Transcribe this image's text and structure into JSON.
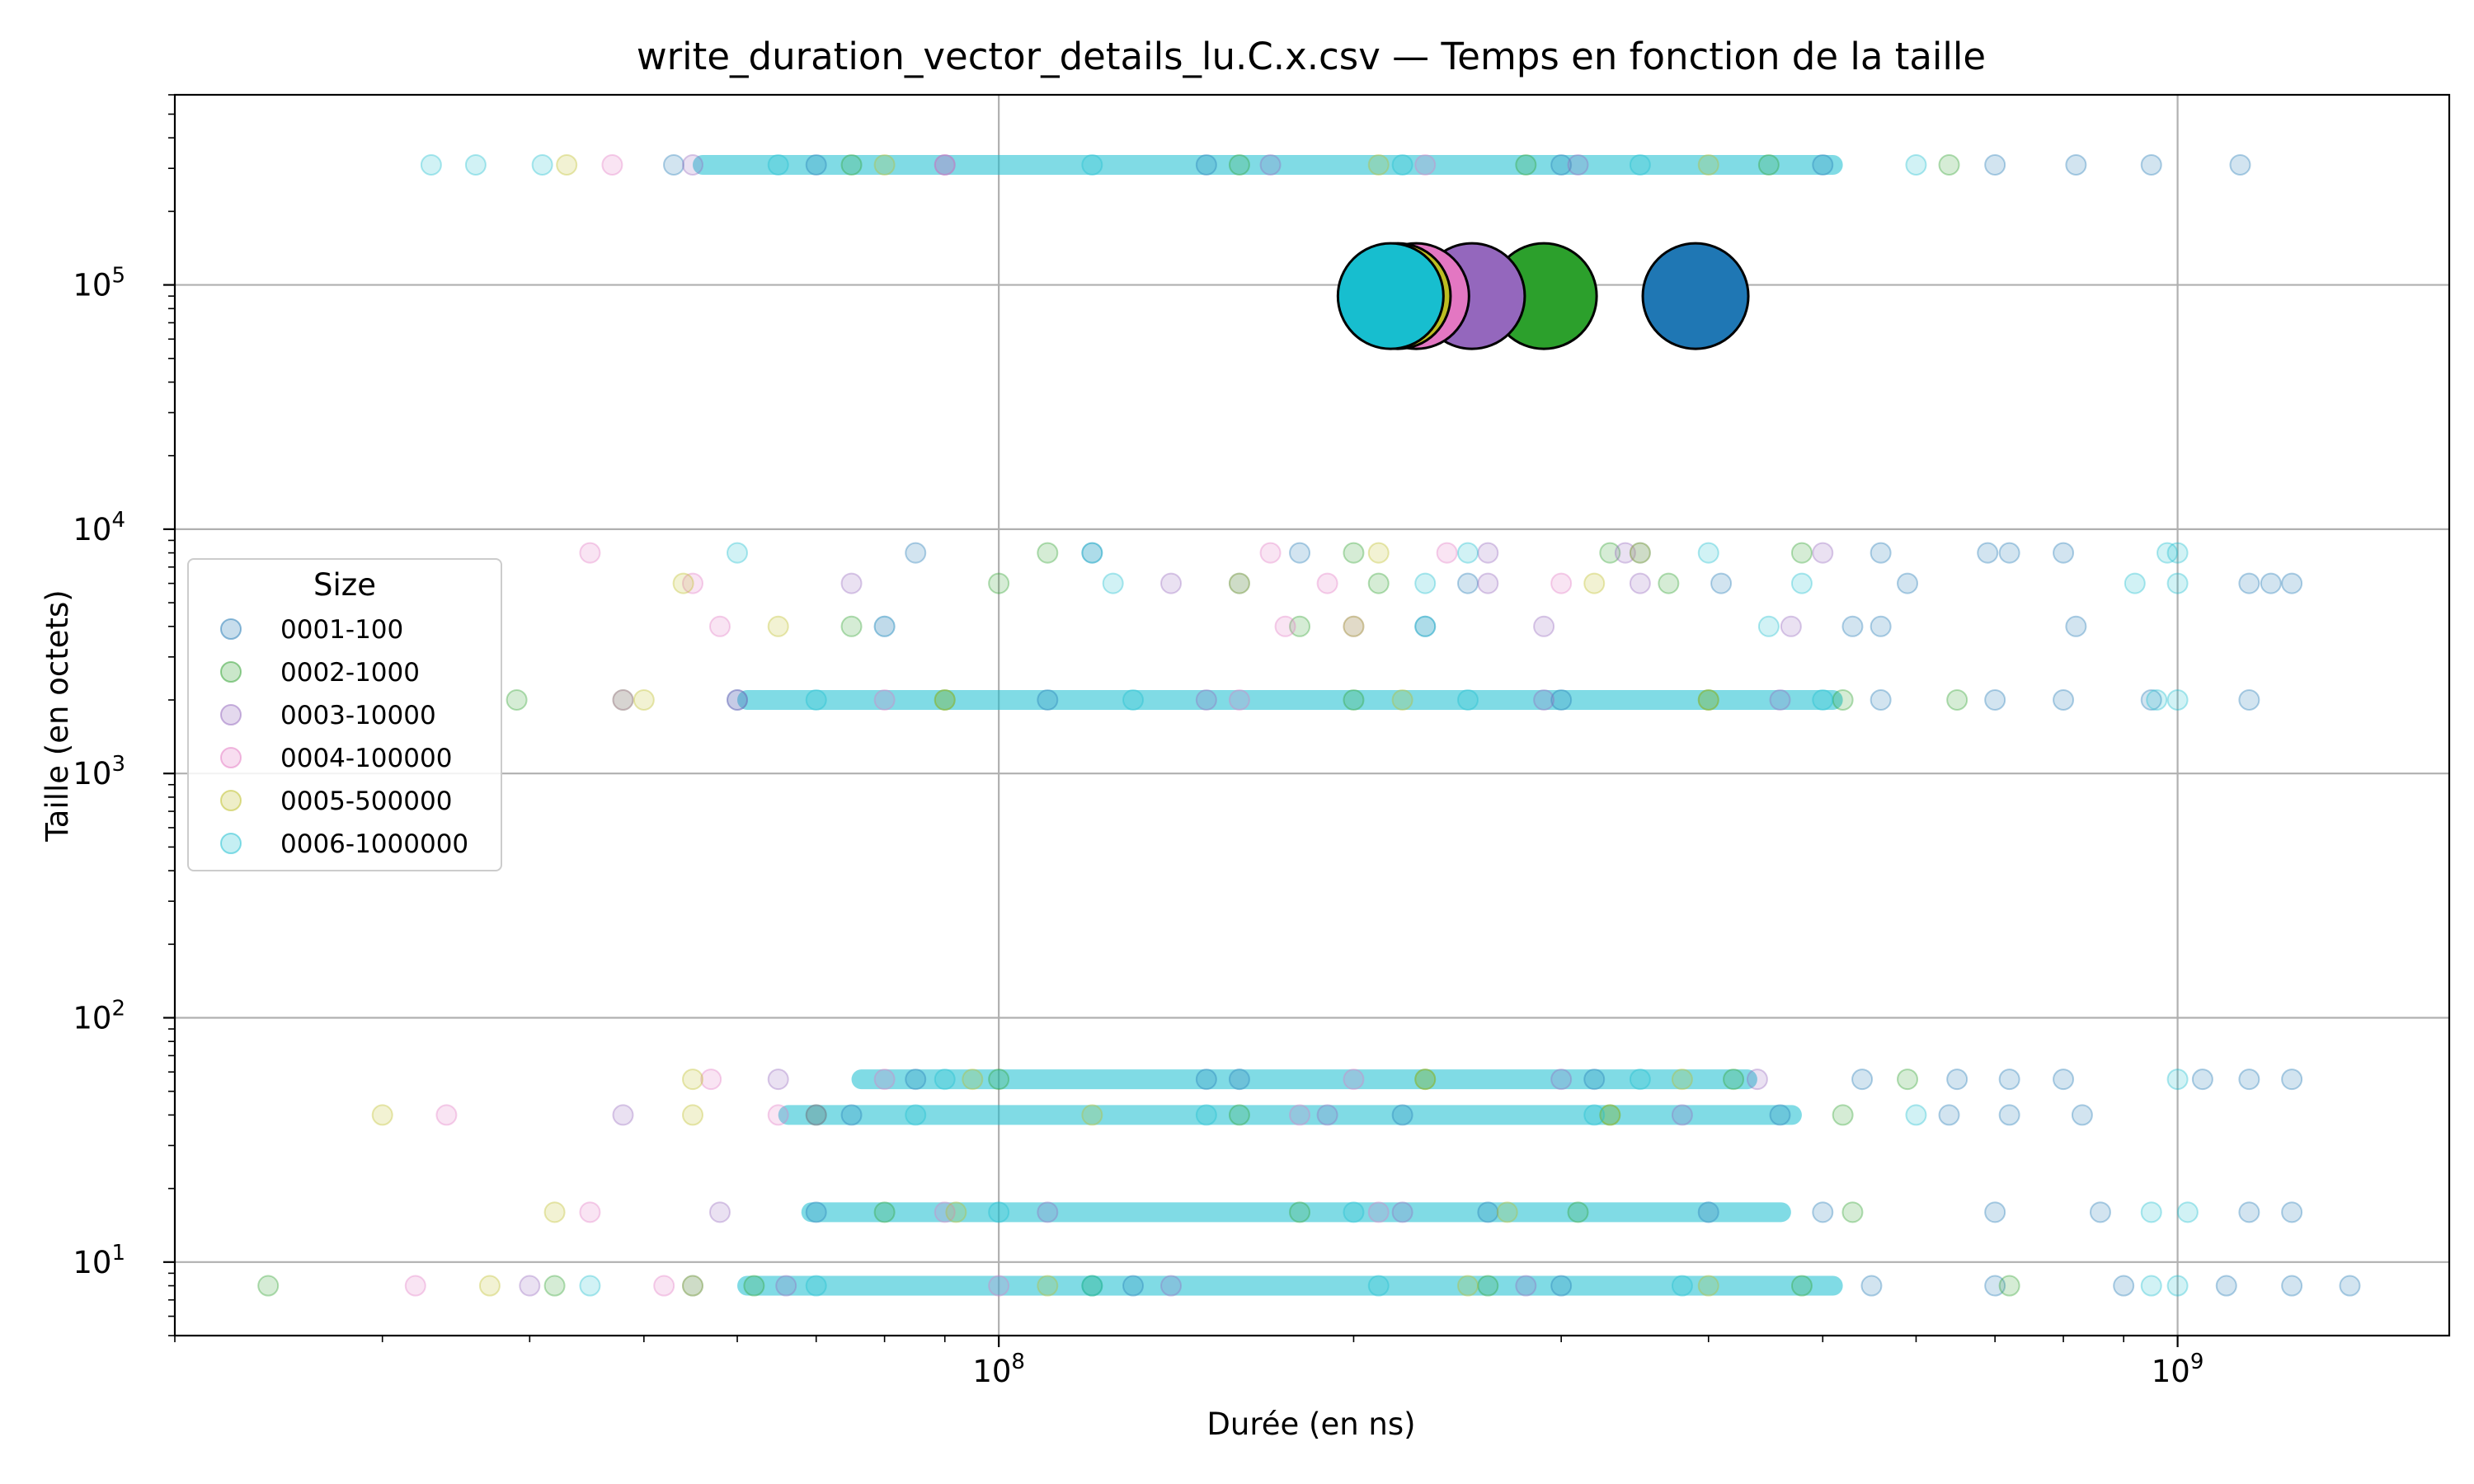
{
  "chart_data": {
    "type": "scatter",
    "title": "write_duration_vector_details_lu.C.x.csv — Temps en fonction de la taille",
    "xlabel": "Durée (en ns)",
    "ylabel": "Taille (en octets)",
    "xscale": "log",
    "yscale": "log",
    "xlim": [
      20000000,
      1700000000
    ],
    "ylim": [
      5,
      600000
    ],
    "grid": true,
    "x_ticks": [
      {
        "value": 100000000,
        "base": "10",
        "exp": "8"
      },
      {
        "value": 1000000000,
        "base": "10",
        "exp": "9"
      }
    ],
    "y_ticks": [
      {
        "value": 10,
        "base": "10",
        "exp": "1"
      },
      {
        "value": 100,
        "base": "10",
        "exp": "2"
      },
      {
        "value": 1000,
        "base": "10",
        "exp": "3"
      },
      {
        "value": 10000,
        "base": "10",
        "exp": "4"
      },
      {
        "value": 100000,
        "base": "10",
        "exp": "5"
      }
    ],
    "legend": {
      "title": "Size",
      "placement": "center-left"
    },
    "size_levels": [
      8,
      16,
      40,
      56,
      2000,
      4000,
      6000,
      8000,
      310000
    ],
    "series": [
      {
        "name": "0001-100",
        "color": "#1f77b4",
        "points": [
          [
            53000000,
            310000
          ],
          [
            70000000,
            310000
          ],
          [
            150000000,
            310000
          ],
          [
            300000000,
            310000
          ],
          [
            500000000,
            310000
          ],
          [
            700000000,
            310000
          ],
          [
            820000000,
            310000
          ],
          [
            950000000,
            310000
          ],
          [
            1130000000,
            310000
          ],
          [
            85000000,
            8000
          ],
          [
            120000000,
            8000
          ],
          [
            180000000,
            8000
          ],
          [
            350000000,
            8000
          ],
          [
            560000000,
            8000
          ],
          [
            690000000,
            8000
          ],
          [
            720000000,
            8000
          ],
          [
            800000000,
            8000
          ],
          [
            160000000,
            6000
          ],
          [
            250000000,
            6000
          ],
          [
            410000000,
            6000
          ],
          [
            590000000,
            6000
          ],
          [
            1150000000,
            6000
          ],
          [
            1200000000,
            6000
          ],
          [
            1250000000,
            6000
          ],
          [
            230000000,
            4000
          ],
          [
            530000000,
            4000
          ],
          [
            560000000,
            4000
          ],
          [
            820000000,
            4000
          ],
          [
            60000000,
            2000
          ],
          [
            110000000,
            2000
          ],
          [
            300000000,
            2000
          ],
          [
            560000000,
            2000
          ],
          [
            700000000,
            2000
          ],
          [
            800000000,
            2000
          ],
          [
            950000000,
            2000
          ],
          [
            1150000000,
            2000
          ],
          [
            85000000,
            56
          ],
          [
            150000000,
            56
          ],
          [
            320000000,
            56
          ],
          [
            540000000,
            56
          ],
          [
            650000000,
            56
          ],
          [
            720000000,
            56
          ],
          [
            800000000,
            56
          ],
          [
            1050000000,
            56
          ],
          [
            1150000000,
            56
          ],
          [
            1250000000,
            56
          ],
          [
            75000000,
            40
          ],
          [
            220000000,
            40
          ],
          [
            460000000,
            40
          ],
          [
            640000000,
            40
          ],
          [
            720000000,
            40
          ],
          [
            830000000,
            40
          ],
          [
            70000000,
            16
          ],
          [
            260000000,
            16
          ],
          [
            500000000,
            16
          ],
          [
            700000000,
            16
          ],
          [
            860000000,
            16
          ],
          [
            1150000000,
            16
          ],
          [
            1250000000,
            16
          ],
          [
            55000000,
            8
          ],
          [
            130000000,
            8
          ],
          [
            300000000,
            8
          ],
          [
            550000000,
            8
          ],
          [
            700000000,
            8
          ],
          [
            900000000,
            8
          ],
          [
            1100000000,
            8
          ],
          [
            1250000000,
            8
          ],
          [
            1400000000,
            8
          ]
        ]
      },
      {
        "name": "0002-1000",
        "color": "#2ca02c",
        "points": [
          [
            75000000,
            310000
          ],
          [
            160000000,
            310000
          ],
          [
            280000000,
            310000
          ],
          [
            450000000,
            310000
          ],
          [
            640000000,
            310000
          ],
          [
            110000000,
            8000
          ],
          [
            200000000,
            8000
          ],
          [
            330000000,
            8000
          ],
          [
            480000000,
            8000
          ],
          [
            100000000,
            6000
          ],
          [
            210000000,
            6000
          ],
          [
            370000000,
            6000
          ],
          [
            75000000,
            4000
          ],
          [
            180000000,
            4000
          ],
          [
            39000000,
            2000
          ],
          [
            48000000,
            2000
          ],
          [
            90000000,
            2000
          ],
          [
            200000000,
            2000
          ],
          [
            400000000,
            2000
          ],
          [
            520000000,
            2000
          ],
          [
            650000000,
            2000
          ],
          [
            100000000,
            56
          ],
          [
            230000000,
            56
          ],
          [
            420000000,
            56
          ],
          [
            590000000,
            56
          ],
          [
            70000000,
            40
          ],
          [
            160000000,
            40
          ],
          [
            330000000,
            40
          ],
          [
            520000000,
            40
          ],
          [
            80000000,
            16
          ],
          [
            180000000,
            16
          ],
          [
            310000000,
            16
          ],
          [
            530000000,
            16
          ],
          [
            24000000,
            8
          ],
          [
            42000000,
            8
          ],
          [
            62000000,
            8
          ],
          [
            120000000,
            8
          ],
          [
            260000000,
            8
          ],
          [
            480000000,
            8
          ],
          [
            720000000,
            8
          ]
        ]
      },
      {
        "name": "0003-10000",
        "color": "#9467bd",
        "points": [
          [
            55000000,
            310000
          ],
          [
            90000000,
            310000
          ],
          [
            170000000,
            310000
          ],
          [
            310000000,
            310000
          ],
          [
            260000000,
            8000
          ],
          [
            340000000,
            8000
          ],
          [
            500000000,
            8000
          ],
          [
            75000000,
            6000
          ],
          [
            140000000,
            6000
          ],
          [
            260000000,
            6000
          ],
          [
            350000000,
            6000
          ],
          [
            80000000,
            4000
          ],
          [
            200000000,
            4000
          ],
          [
            290000000,
            4000
          ],
          [
            470000000,
            4000
          ],
          [
            60000000,
            2000
          ],
          [
            150000000,
            2000
          ],
          [
            290000000,
            2000
          ],
          [
            460000000,
            2000
          ],
          [
            65000000,
            56
          ],
          [
            160000000,
            56
          ],
          [
            300000000,
            56
          ],
          [
            440000000,
            56
          ],
          [
            48000000,
            40
          ],
          [
            70000000,
            40
          ],
          [
            190000000,
            40
          ],
          [
            380000000,
            40
          ],
          [
            58000000,
            16
          ],
          [
            110000000,
            16
          ],
          [
            220000000,
            16
          ],
          [
            400000000,
            16
          ],
          [
            40000000,
            8
          ],
          [
            66000000,
            8
          ],
          [
            140000000,
            8
          ],
          [
            280000000,
            8
          ]
        ]
      },
      {
        "name": "0004-100000",
        "color": "#e377c2",
        "points": [
          [
            47000000,
            310000
          ],
          [
            90000000,
            310000
          ],
          [
            230000000,
            310000
          ],
          [
            45000000,
            8000
          ],
          [
            170000000,
            8000
          ],
          [
            240000000,
            8000
          ],
          [
            55000000,
            6000
          ],
          [
            190000000,
            6000
          ],
          [
            300000000,
            6000
          ],
          [
            58000000,
            4000
          ],
          [
            175000000,
            4000
          ],
          [
            48000000,
            2000
          ],
          [
            80000000,
            2000
          ],
          [
            160000000,
            2000
          ],
          [
            57000000,
            56
          ],
          [
            80000000,
            56
          ],
          [
            200000000,
            56
          ],
          [
            34000000,
            40
          ],
          [
            65000000,
            40
          ],
          [
            180000000,
            40
          ],
          [
            45000000,
            16
          ],
          [
            90000000,
            16
          ],
          [
            210000000,
            16
          ],
          [
            32000000,
            8
          ],
          [
            52000000,
            8
          ],
          [
            100000000,
            8
          ]
        ]
      },
      {
        "name": "0005-500000",
        "color": "#bcbd22",
        "points": [
          [
            43000000,
            310000
          ],
          [
            80000000,
            310000
          ],
          [
            210000000,
            310000
          ],
          [
            400000000,
            310000
          ],
          [
            210000000,
            8000
          ],
          [
            350000000,
            8000
          ],
          [
            54000000,
            6000
          ],
          [
            160000000,
            6000
          ],
          [
            320000000,
            6000
          ],
          [
            65000000,
            4000
          ],
          [
            200000000,
            4000
          ],
          [
            50000000,
            2000
          ],
          [
            90000000,
            2000
          ],
          [
            220000000,
            2000
          ],
          [
            400000000,
            2000
          ],
          [
            55000000,
            56
          ],
          [
            95000000,
            56
          ],
          [
            230000000,
            56
          ],
          [
            380000000,
            56
          ],
          [
            30000000,
            40
          ],
          [
            55000000,
            40
          ],
          [
            120000000,
            40
          ],
          [
            330000000,
            40
          ],
          [
            42000000,
            16
          ],
          [
            92000000,
            16
          ],
          [
            270000000,
            16
          ],
          [
            37000000,
            8
          ],
          [
            55000000,
            8
          ],
          [
            110000000,
            8
          ],
          [
            250000000,
            8
          ],
          [
            400000000,
            8
          ]
        ]
      },
      {
        "name": "0006-1000000",
        "color": "#17becf",
        "points": [
          [
            33000000,
            310000
          ],
          [
            36000000,
            310000
          ],
          [
            41000000,
            310000
          ],
          [
            65000000,
            310000
          ],
          [
            120000000,
            310000
          ],
          [
            220000000,
            310000
          ],
          [
            350000000,
            310000
          ],
          [
            600000000,
            310000
          ],
          [
            60000000,
            8000
          ],
          [
            120000000,
            8000
          ],
          [
            250000000,
            8000
          ],
          [
            400000000,
            8000
          ],
          [
            980000000,
            8000
          ],
          [
            1000000000,
            8000
          ],
          [
            125000000,
            6000
          ],
          [
            230000000,
            6000
          ],
          [
            480000000,
            6000
          ],
          [
            920000000,
            6000
          ],
          [
            1000000000,
            6000
          ],
          [
            80000000,
            4000
          ],
          [
            230000000,
            4000
          ],
          [
            450000000,
            4000
          ],
          [
            70000000,
            2000
          ],
          [
            130000000,
            2000
          ],
          [
            250000000,
            2000
          ],
          [
            500000000,
            2000
          ],
          [
            960000000,
            2000
          ],
          [
            1000000000,
            2000
          ],
          [
            90000000,
            56
          ],
          [
            160000000,
            56
          ],
          [
            350000000,
            56
          ],
          [
            1000000000,
            56
          ],
          [
            85000000,
            40
          ],
          [
            150000000,
            40
          ],
          [
            320000000,
            40
          ],
          [
            600000000,
            40
          ],
          [
            100000000,
            16
          ],
          [
            200000000,
            16
          ],
          [
            400000000,
            16
          ],
          [
            950000000,
            16
          ],
          [
            1020000000,
            16
          ],
          [
            45000000,
            8
          ],
          [
            70000000,
            8
          ],
          [
            120000000,
            8
          ],
          [
            210000000,
            8
          ],
          [
            380000000,
            8
          ],
          [
            950000000,
            8
          ],
          [
            1000000000,
            8
          ]
        ]
      }
    ],
    "bands": [
      {
        "color": "#17becf",
        "y": 310000,
        "x_from": 55000000,
        "x_to": 520000000
      },
      {
        "color": "#17becf",
        "y": 2000,
        "x_from": 60000000,
        "x_to": 520000000
      },
      {
        "color": "#17becf",
        "y": 8,
        "x_from": 60000000,
        "x_to": 520000000
      },
      {
        "color": "#17becf",
        "y": 40,
        "x_from": 65000000,
        "x_to": 480000000
      },
      {
        "color": "#17becf",
        "y": 16,
        "x_from": 68000000,
        "x_to": 470000000
      },
      {
        "color": "#17becf",
        "y": 56,
        "x_from": 75000000,
        "x_to": 440000000
      }
    ],
    "means": [
      {
        "name": "0001-100",
        "color": "#1f77b4",
        "x": 390000000,
        "y": 90000
      },
      {
        "name": "0002-1000",
        "color": "#2ca02c",
        "x": 290000000,
        "y": 90000
      },
      {
        "name": "0003-10000",
        "color": "#9467bd",
        "x": 252000000,
        "y": 90000
      },
      {
        "name": "0004-100000",
        "color": "#e377c2",
        "x": 226000000,
        "y": 90000
      },
      {
        "name": "0005-500000",
        "color": "#bcbd22",
        "x": 218000000,
        "y": 90000
      },
      {
        "name": "0006-1000000",
        "color": "#17becf",
        "x": 215000000,
        "y": 90000
      }
    ]
  }
}
